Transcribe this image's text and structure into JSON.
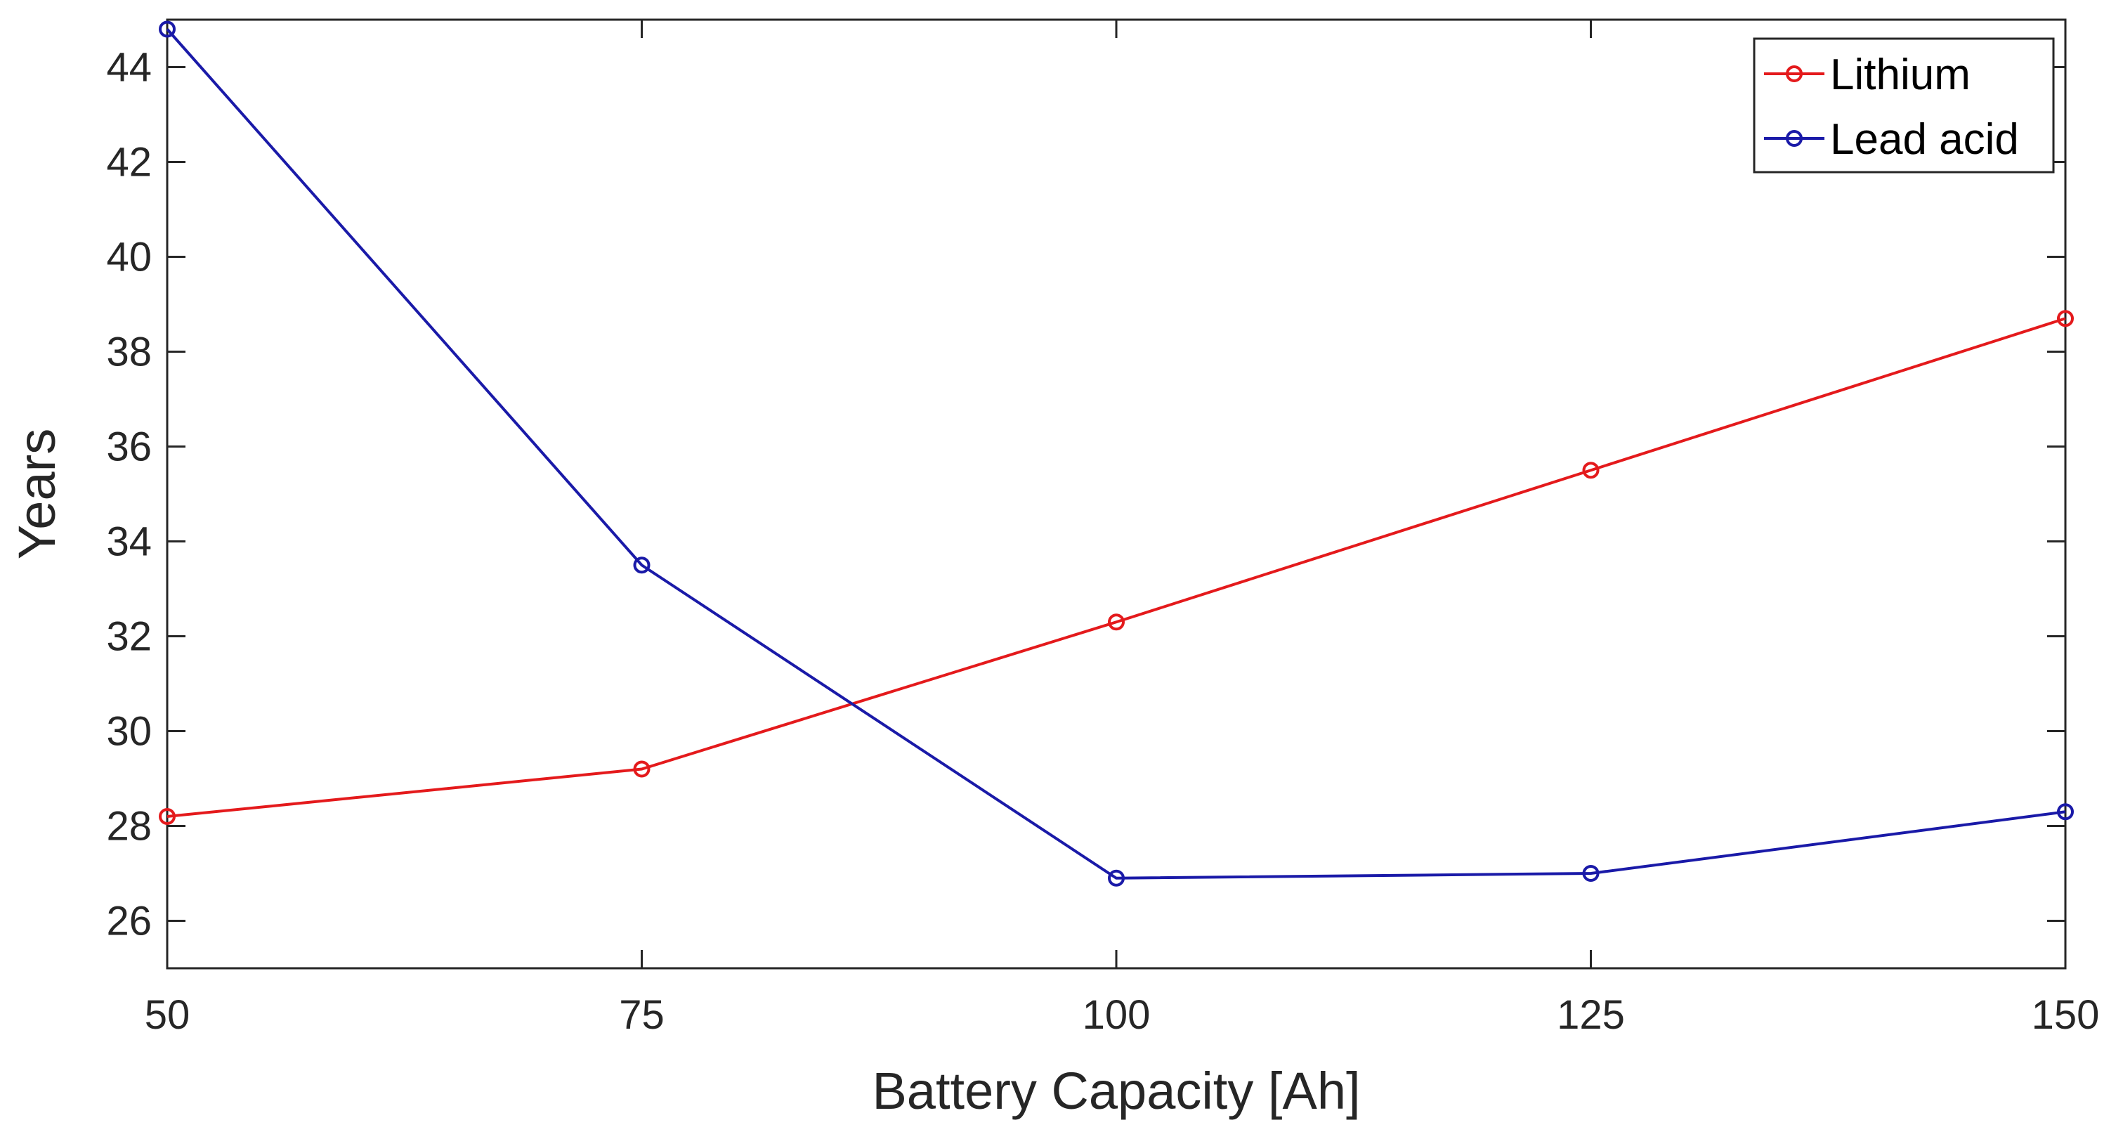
{
  "chart_data": {
    "type": "line",
    "title": "",
    "xlabel": "Battery Capacity [Ah]",
    "ylabel": "Years",
    "x": [
      50,
      75,
      100,
      125,
      150
    ],
    "xlim": [
      50,
      150
    ],
    "ylim": [
      25,
      45
    ],
    "xticks": [
      50,
      75,
      100,
      125,
      150
    ],
    "yticks": [
      26,
      28,
      30,
      32,
      34,
      36,
      38,
      40,
      42,
      44
    ],
    "grid": false,
    "legend_position": "top-right",
    "series": [
      {
        "name": "Lithium",
        "color": "#e41a1c",
        "marker": "circle",
        "values": [
          28.2,
          29.2,
          32.3,
          35.5,
          38.7
        ]
      },
      {
        "name": "Lead acid",
        "color": "#1a1aa8",
        "marker": "circle",
        "values": [
          44.8,
          33.5,
          26.9,
          27.0,
          28.3
        ]
      }
    ]
  }
}
